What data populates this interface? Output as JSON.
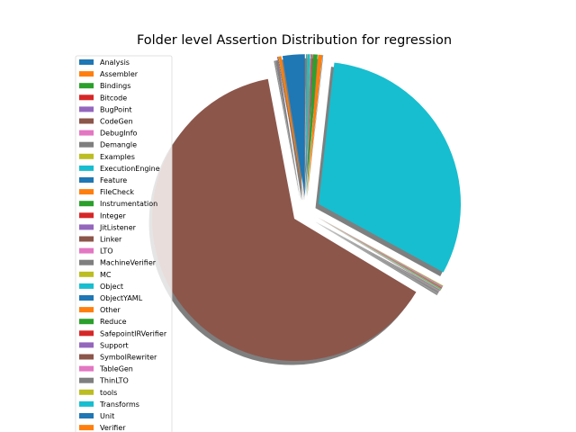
{
  "chart_data": {
    "type": "pie",
    "title": "Folder level Assertion Distribution for regression",
    "shadow": true,
    "legend_position": "left",
    "exploded": true,
    "slices": [
      {
        "label": "Analysis",
        "value": 2.5,
        "color": "#1f77b4"
      },
      {
        "label": "Assembler",
        "value": 0.3,
        "color": "#ff7f0e"
      },
      {
        "label": "Bindings",
        "value": 0.05,
        "color": "#2ca02c"
      },
      {
        "label": "Bitcode",
        "value": 0.05,
        "color": "#d62728"
      },
      {
        "label": "BugPoint",
        "value": 0.05,
        "color": "#9467bd"
      },
      {
        "label": "CodeGen",
        "value": 63.0,
        "color": "#8c564b"
      },
      {
        "label": "DebugInfo",
        "value": 0.05,
        "color": "#e377c2"
      },
      {
        "label": "Demangle",
        "value": 0.05,
        "color": "#7f7f7f"
      },
      {
        "label": "Examples",
        "value": 0.05,
        "color": "#bcbd22"
      },
      {
        "label": "ExecutionEngine",
        "value": 0.05,
        "color": "#17becf"
      },
      {
        "label": "Feature",
        "value": 0.05,
        "color": "#1f77b4"
      },
      {
        "label": "FileCheck",
        "value": 0.05,
        "color": "#ff7f0e"
      },
      {
        "label": "Instrumentation",
        "value": 0.05,
        "color": "#2ca02c"
      },
      {
        "label": "Integer",
        "value": 0.05,
        "color": "#d62728"
      },
      {
        "label": "JitListener",
        "value": 0.05,
        "color": "#9467bd"
      },
      {
        "label": "Linker",
        "value": 0.05,
        "color": "#8c564b"
      },
      {
        "label": "LTO",
        "value": 0.05,
        "color": "#e377c2"
      },
      {
        "label": "MachineVerifier",
        "value": 0.05,
        "color": "#7f7f7f"
      },
      {
        "label": "MC",
        "value": 0.05,
        "color": "#bcbd22"
      },
      {
        "label": "Object",
        "value": 31.0,
        "color": "#17becf"
      },
      {
        "label": "ObjectYAML",
        "value": 0.05,
        "color": "#1f77b4"
      },
      {
        "label": "Other",
        "value": 0.5,
        "color": "#ff7f0e"
      },
      {
        "label": "Reduce",
        "value": 0.5,
        "color": "#2ca02c"
      },
      {
        "label": "SafepointIRVerifier",
        "value": 0.05,
        "color": "#d62728"
      },
      {
        "label": "Support",
        "value": 0.05,
        "color": "#9467bd"
      },
      {
        "label": "SymbolRewriter",
        "value": 0.05,
        "color": "#8c564b"
      },
      {
        "label": "TableGen",
        "value": 0.05,
        "color": "#e377c2"
      },
      {
        "label": "ThinLTO",
        "value": 0.05,
        "color": "#7f7f7f"
      },
      {
        "label": "tools",
        "value": 0.05,
        "color": "#bcbd22"
      },
      {
        "label": "Transforms",
        "value": 0.3,
        "color": "#17becf"
      },
      {
        "label": "Unit",
        "value": 0.05,
        "color": "#1f77b4"
      },
      {
        "label": "Verifier",
        "value": 0.05,
        "color": "#ff7f0e"
      }
    ]
  }
}
